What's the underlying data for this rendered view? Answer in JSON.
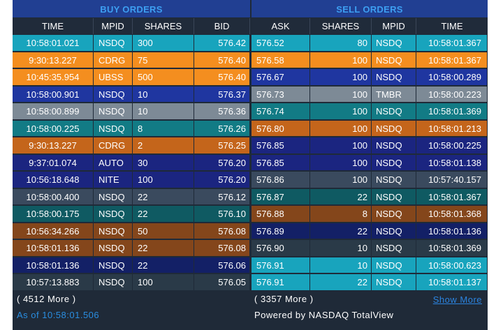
{
  "colors": {
    "cyan": "#18a4bd",
    "orange": "#f48e1f",
    "blue": "#1f36a0",
    "gray": "#7d8a96",
    "teal": "#127b85",
    "dark_orange": "#c4651b",
    "dark_blue": "#1b2580",
    "slate": "#3a4a5e",
    "dark_teal": "#0f5a62",
    "brown": "#84461b",
    "navy": "#132066",
    "charcoal": "#2a3a48"
  },
  "buy": {
    "title": "BUY ORDERS",
    "columns": {
      "time": "TIME",
      "mpid": "MPID",
      "shares": "SHARES",
      "bid": "BID"
    },
    "rows": [
      {
        "time": "10:58:01.021",
        "mpid": "NSDQ",
        "shares": "300",
        "bid": "576.42",
        "color": "#18a4bd"
      },
      {
        "time": "9:30:13.227",
        "mpid": "CDRG",
        "shares": "75",
        "bid": "576.40",
        "color": "#f48e1f"
      },
      {
        "time": "10:45:35.954",
        "mpid": "UBSS",
        "shares": "500",
        "bid": "576.40",
        "color": "#f48e1f"
      },
      {
        "time": "10:58:00.901",
        "mpid": "NSDQ",
        "shares": "10",
        "bid": "576.37",
        "color": "#1f36a0"
      },
      {
        "time": "10:58:00.899",
        "mpid": "NSDQ",
        "shares": "10",
        "bid": "576.36",
        "color": "#7d8a96"
      },
      {
        "time": "10:58:00.225",
        "mpid": "NSDQ",
        "shares": "8",
        "bid": "576.26",
        "color": "#127b85"
      },
      {
        "time": "9:30:13.227",
        "mpid": "CDRG",
        "shares": "2",
        "bid": "576.25",
        "color": "#c4651b"
      },
      {
        "time": "9:37:01.074",
        "mpid": "AUTO",
        "shares": "30",
        "bid": "576.20",
        "color": "#1b2580"
      },
      {
        "time": "10:56:18.648",
        "mpid": "NITE",
        "shares": "100",
        "bid": "576.20",
        "color": "#1b2580"
      },
      {
        "time": "10:58:00.400",
        "mpid": "NSDQ",
        "shares": "22",
        "bid": "576.12",
        "color": "#3a4a5e"
      },
      {
        "time": "10:58:00.175",
        "mpid": "NSDQ",
        "shares": "22",
        "bid": "576.10",
        "color": "#0f5a62"
      },
      {
        "time": "10:56:34.266",
        "mpid": "NSDQ",
        "shares": "50",
        "bid": "576.08",
        "color": "#84461b"
      },
      {
        "time": "10:58:01.136",
        "mpid": "NSDQ",
        "shares": "22",
        "bid": "576.08",
        "color": "#84461b"
      },
      {
        "time": "10:58:01.136",
        "mpid": "NSDQ",
        "shares": "22",
        "bid": "576.06",
        "color": "#132066"
      },
      {
        "time": "10:57:13.883",
        "mpid": "NSDQ",
        "shares": "100",
        "bid": "576.05",
        "color": "#2a3a48"
      }
    ],
    "more": "( 4512 More )"
  },
  "sell": {
    "title": "SELL ORDERS",
    "columns": {
      "ask": "ASK",
      "shares": "SHARES",
      "mpid": "MPID",
      "time": "TIME"
    },
    "rows": [
      {
        "ask": "576.52",
        "shares": "80",
        "mpid": "NSDQ",
        "time": "10:58:01.367",
        "color": "#18a4bd"
      },
      {
        "ask": "576.58",
        "shares": "100",
        "mpid": "NSDQ",
        "time": "10:58:01.367",
        "color": "#f48e1f"
      },
      {
        "ask": "576.67",
        "shares": "100",
        "mpid": "NSDQ",
        "time": "10:58:00.289",
        "color": "#1f36a0"
      },
      {
        "ask": "576.73",
        "shares": "100",
        "mpid": "TMBR",
        "time": "10:58:00.223",
        "color": "#7d8a96"
      },
      {
        "ask": "576.74",
        "shares": "100",
        "mpid": "NSDQ",
        "time": "10:58:01.369",
        "color": "#127b85"
      },
      {
        "ask": "576.80",
        "shares": "100",
        "mpid": "NSDQ",
        "time": "10:58:01.213",
        "color": "#c4651b"
      },
      {
        "ask": "576.85",
        "shares": "100",
        "mpid": "NSDQ",
        "time": "10:58:00.225",
        "color": "#1b2580"
      },
      {
        "ask": "576.85",
        "shares": "100",
        "mpid": "NSDQ",
        "time": "10:58:01.138",
        "color": "#1b2580"
      },
      {
        "ask": "576.86",
        "shares": "100",
        "mpid": "NSDQ",
        "time": "10:57:40.157",
        "color": "#3a4a5e"
      },
      {
        "ask": "576.87",
        "shares": "22",
        "mpid": "NSDQ",
        "time": "10:58:01.367",
        "color": "#0f5a62"
      },
      {
        "ask": "576.88",
        "shares": "8",
        "mpid": "NSDQ",
        "time": "10:58:01.368",
        "color": "#84461b"
      },
      {
        "ask": "576.89",
        "shares": "22",
        "mpid": "NSDQ",
        "time": "10:58:01.136",
        "color": "#132066"
      },
      {
        "ask": "576.90",
        "shares": "10",
        "mpid": "NSDQ",
        "time": "10:58:01.369",
        "color": "#2a3a48"
      },
      {
        "ask": "576.91",
        "shares": "10",
        "mpid": "NSDQ",
        "time": "10:58:00.623",
        "color": "#18a4bd"
      },
      {
        "ask": "576.91",
        "shares": "22",
        "mpid": "NSDQ",
        "time": "10:58:01.137",
        "color": "#18a4bd"
      }
    ],
    "more": "( 3357 More )"
  },
  "footer": {
    "as_of": "As of 10:58:01.506",
    "powered_by": "Powered by NASDAQ TotalView",
    "show_more": "Show More"
  }
}
